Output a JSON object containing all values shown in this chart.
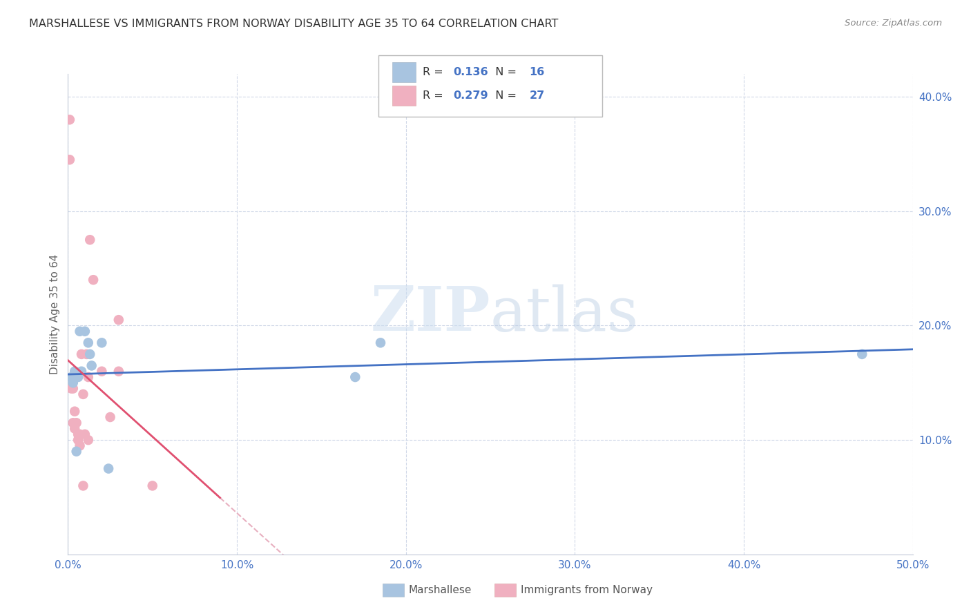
{
  "title": "MARSHALLESE VS IMMIGRANTS FROM NORWAY DISABILITY AGE 35 TO 64 CORRELATION CHART",
  "source": "Source: ZipAtlas.com",
  "ylabel": "Disability Age 35 to 64",
  "xlim": [
    0.0,
    0.5
  ],
  "ylim": [
    0.0,
    0.42
  ],
  "xtick_labels": [
    "0.0%",
    "",
    "",
    "",
    "",
    "10.0%",
    "",
    "",
    "",
    "",
    "20.0%",
    "",
    "",
    "",
    "",
    "30.0%",
    "",
    "",
    "",
    "",
    "40.0%",
    "",
    "",
    "",
    "",
    "50.0%"
  ],
  "xtick_vals": [
    0.0,
    0.02,
    0.04,
    0.06,
    0.08,
    0.1,
    0.12,
    0.14,
    0.16,
    0.18,
    0.2,
    0.22,
    0.24,
    0.26,
    0.28,
    0.3,
    0.32,
    0.34,
    0.36,
    0.38,
    0.4,
    0.42,
    0.44,
    0.46,
    0.48,
    0.5
  ],
  "ytick_labels": [
    "10.0%",
    "20.0%",
    "30.0%",
    "40.0%"
  ],
  "ytick_vals": [
    0.1,
    0.2,
    0.3,
    0.4
  ],
  "blue_color": "#a8c4e0",
  "pink_color": "#f0b0c0",
  "blue_line_color": "#4472c4",
  "pink_line_color": "#e05070",
  "pink_dashed_color": "#e8b0c0",
  "r_blue": 0.136,
  "n_blue": 16,
  "r_pink": 0.279,
  "n_pink": 27,
  "legend_label_blue": "Marshallese",
  "legend_label_pink": "Immigrants from Norway",
  "watermark_zip": "ZIP",
  "watermark_atlas": "atlas",
  "blue_x": [
    0.002,
    0.003,
    0.004,
    0.005,
    0.006,
    0.007,
    0.008,
    0.01,
    0.012,
    0.013,
    0.014,
    0.02,
    0.024,
    0.17,
    0.185,
    0.47
  ],
  "blue_y": [
    0.155,
    0.15,
    0.16,
    0.09,
    0.155,
    0.195,
    0.16,
    0.195,
    0.185,
    0.175,
    0.165,
    0.185,
    0.075,
    0.155,
    0.185,
    0.175
  ],
  "pink_x": [
    0.001,
    0.001,
    0.002,
    0.003,
    0.003,
    0.004,
    0.004,
    0.005,
    0.005,
    0.006,
    0.006,
    0.007,
    0.007,
    0.008,
    0.009,
    0.01,
    0.011,
    0.012,
    0.012,
    0.013,
    0.015,
    0.02,
    0.025,
    0.03,
    0.03,
    0.05,
    0.009
  ],
  "pink_y": [
    0.38,
    0.345,
    0.145,
    0.145,
    0.115,
    0.125,
    0.11,
    0.155,
    0.115,
    0.105,
    0.1,
    0.105,
    0.095,
    0.175,
    0.14,
    0.105,
    0.175,
    0.155,
    0.1,
    0.275,
    0.24,
    0.16,
    0.12,
    0.205,
    0.16,
    0.06,
    0.06
  ]
}
